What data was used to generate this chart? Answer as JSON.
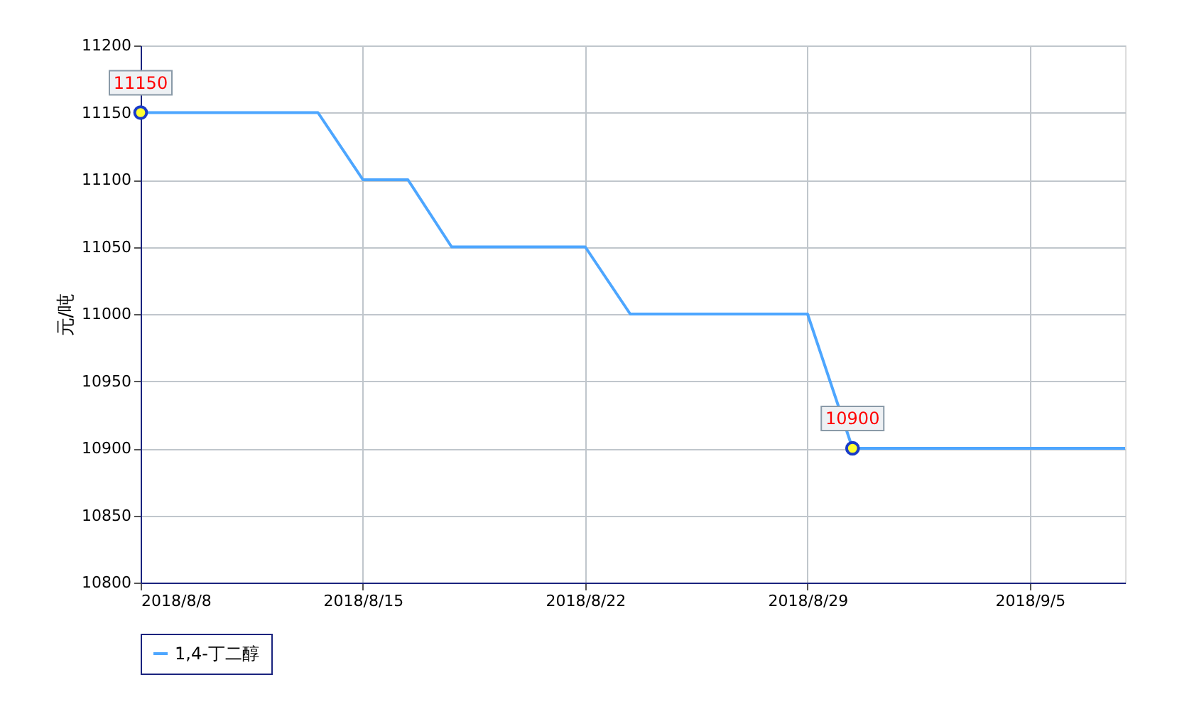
{
  "chart_data": {
    "type": "line",
    "ylabel": "元/吨",
    "series": [
      {
        "name": "1,4-丁二醇",
        "color": "#4da6ff",
        "x": [
          "2018-08-08",
          "2018-08-13T14:00",
          "2018-08-15",
          "2018-08-16T10:00",
          "2018-08-17T19:00",
          "2018-08-22",
          "2018-08-23T10:00",
          "2018-08-29",
          "2018-08-30T10:00",
          "2018-09-08"
        ],
        "values": [
          11150,
          11150,
          11100,
          11100,
          11050,
          11050,
          11000,
          11000,
          10900,
          10900
        ]
      }
    ],
    "annotations": [
      {
        "text": "11150",
        "x": "2018-08-08",
        "y": 11150
      },
      {
        "text": "10900",
        "x": "2018-08-30T10:00",
        "y": 10900
      }
    ],
    "xlim": [
      "2018-08-08",
      "2018-09-08"
    ],
    "xticks": [
      {
        "value": "2018-08-08",
        "label": "2018/8/8"
      },
      {
        "value": "2018-08-15",
        "label": "2018/8/15"
      },
      {
        "value": "2018-08-22",
        "label": "2018/8/22"
      },
      {
        "value": "2018-08-29",
        "label": "2018/8/29"
      },
      {
        "value": "2018-09-05",
        "label": "2018/9/5"
      }
    ],
    "ylim": [
      10800,
      11200
    ],
    "yticks": [
      10800,
      10850,
      10900,
      10950,
      11000,
      11050,
      11100,
      11150,
      11200
    ],
    "grid": true,
    "legend": "bottom",
    "marker": "none",
    "line_style": "solid"
  }
}
